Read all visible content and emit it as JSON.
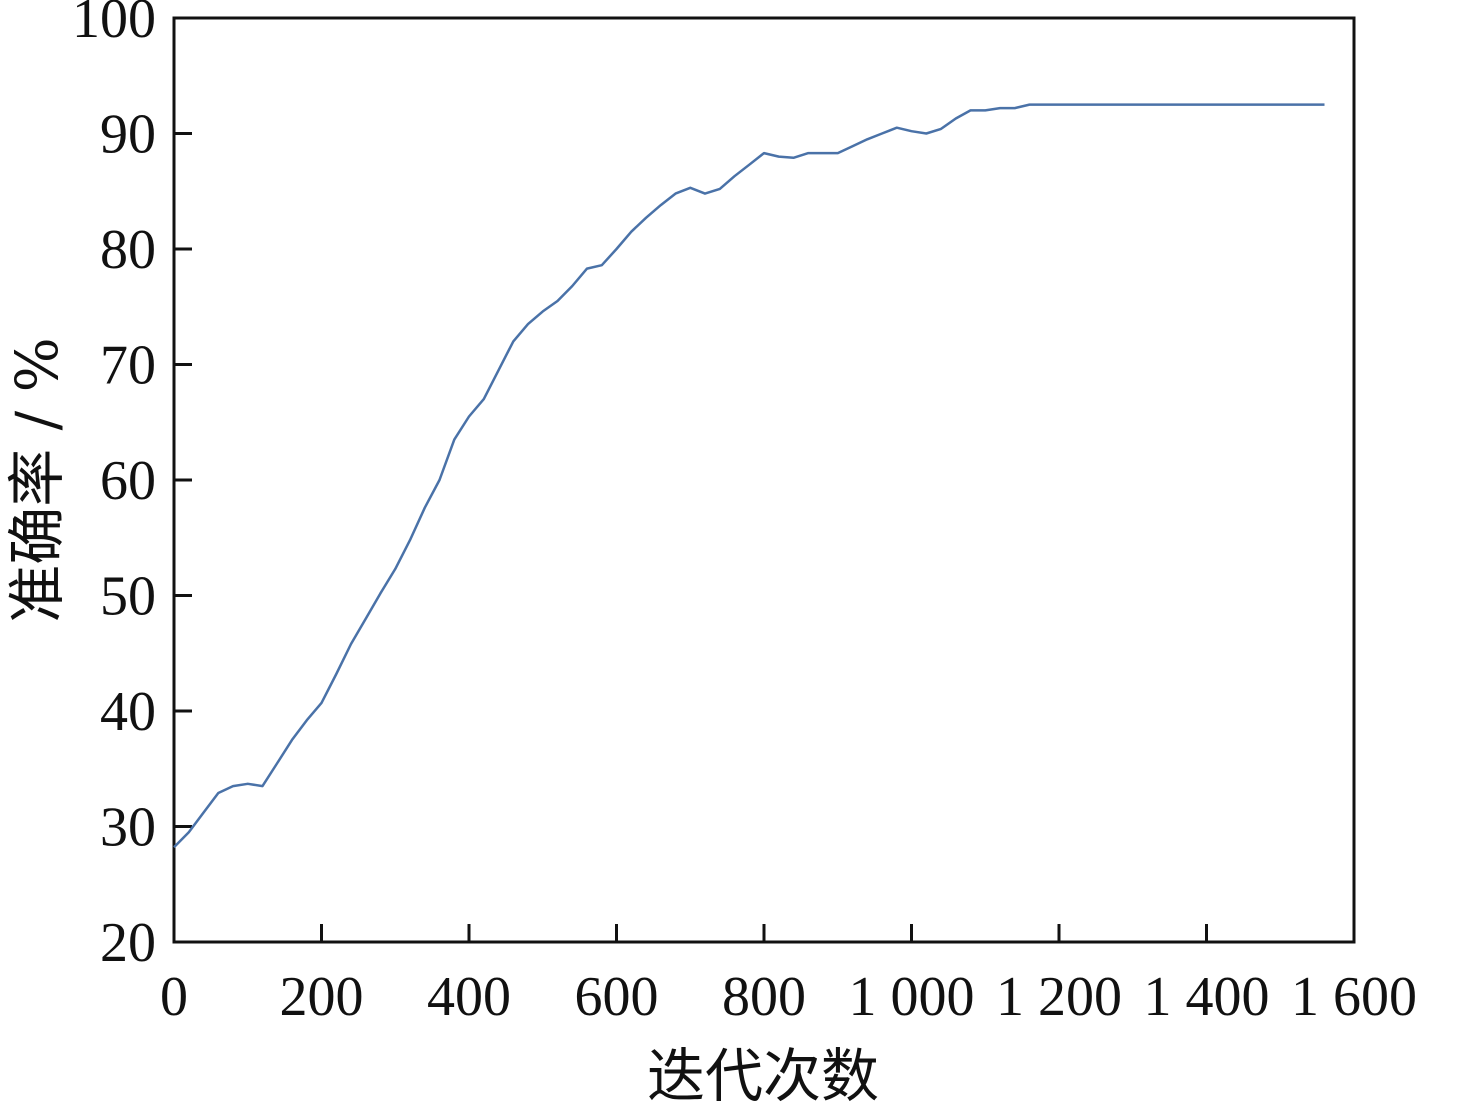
{
  "chart_data": {
    "type": "line",
    "title": "",
    "xlabel": "迭代次数",
    "ylabel": "准确率 / %",
    "xlim": [
      0,
      1600
    ],
    "ylim": [
      20,
      100
    ],
    "x_ticks": [
      0,
      200,
      400,
      600,
      800,
      1000,
      1200,
      1400,
      1600
    ],
    "x_tick_labels": [
      "0",
      "200",
      "400",
      "600",
      "800",
      "1 000",
      "1 200",
      "1 400",
      "1 600"
    ],
    "y_ticks": [
      20,
      30,
      40,
      50,
      60,
      70,
      80,
      90,
      100
    ],
    "y_tick_labels": [
      "20",
      "30",
      "40",
      "50",
      "60",
      "70",
      "80",
      "90",
      "100"
    ],
    "grid": false,
    "legend": "none",
    "line_color": "#4a72a8",
    "series": [
      {
        "x": [
          0,
          20,
          40,
          60,
          80,
          100,
          120,
          140,
          160,
          180,
          200,
          220,
          240,
          260,
          280,
          300,
          320,
          340,
          360,
          380,
          400,
          420,
          440,
          460,
          480,
          500,
          520,
          540,
          560,
          580,
          600,
          620,
          640,
          660,
          680,
          700,
          720,
          740,
          760,
          780,
          800,
          820,
          840,
          860,
          880,
          900,
          920,
          940,
          960,
          980,
          1000,
          1020,
          1040,
          1060,
          1080,
          1100,
          1120,
          1140,
          1160,
          1180,
          1200,
          1220,
          1240,
          1260,
          1280,
          1300,
          1320,
          1340,
          1360,
          1380,
          1400,
          1420,
          1440,
          1460,
          1480,
          1500,
          1520,
          1540,
          1560
        ],
        "values": [
          28.2,
          29.5,
          31.2,
          32.9,
          33.5,
          33.7,
          33.5,
          35.5,
          37.5,
          39.2,
          40.7,
          43.2,
          45.8,
          48.0,
          50.2,
          52.3,
          54.8,
          57.6,
          60.0,
          63.5,
          65.5,
          67.0,
          69.5,
          72.0,
          73.5,
          74.6,
          75.5,
          76.8,
          78.3,
          78.6,
          80.0,
          81.5,
          82.7,
          83.8,
          84.8,
          85.3,
          84.8,
          85.2,
          86.3,
          87.3,
          88.3,
          88.0,
          87.9,
          88.3,
          88.3,
          88.3,
          88.9,
          89.5,
          90.0,
          90.5,
          90.2,
          90.0,
          90.4,
          91.3,
          92.0,
          92.0,
          92.2,
          92.2,
          92.5,
          92.5,
          92.5,
          92.5,
          92.5,
          92.5,
          92.5,
          92.5,
          92.5,
          92.5,
          92.5,
          92.5,
          92.5,
          92.5,
          92.5,
          92.5,
          92.5,
          92.5,
          92.5,
          92.5,
          92.5
        ]
      }
    ]
  }
}
